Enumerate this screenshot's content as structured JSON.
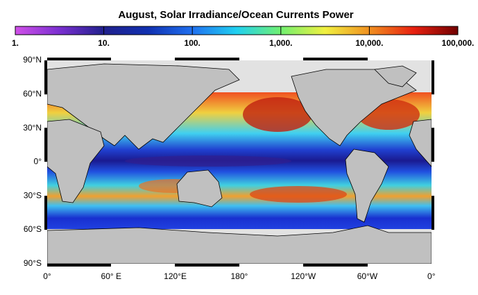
{
  "title": "August, Solar Irradiance/Ocean Currents Power",
  "colorbar": {
    "scale": "log",
    "range": [
      1,
      100000
    ],
    "ticks": [
      {
        "value": 1,
        "label": "1."
      },
      {
        "value": 10,
        "label": "10."
      },
      {
        "value": 100,
        "label": "100."
      },
      {
        "value": 1000,
        "label": "1,000."
      },
      {
        "value": 10000,
        "label": "10,000."
      },
      {
        "value": 100000,
        "label": "100,000."
      }
    ],
    "colors": [
      "#d050e8",
      "#7a2fd0",
      "#20208c",
      "#1030b0",
      "#2070f0",
      "#20d0f0",
      "#70f070",
      "#f0f040",
      "#f09020",
      "#e82010",
      "#700000"
    ]
  },
  "latitude_labels": [
    "90°N",
    "60°N",
    "30°N",
    "0°",
    "30°S",
    "60°S",
    "90°S"
  ],
  "longitude_labels": [
    "0°",
    "60° E",
    "120°E",
    "180°",
    "120°W",
    "60°W",
    "0°"
  ]
}
